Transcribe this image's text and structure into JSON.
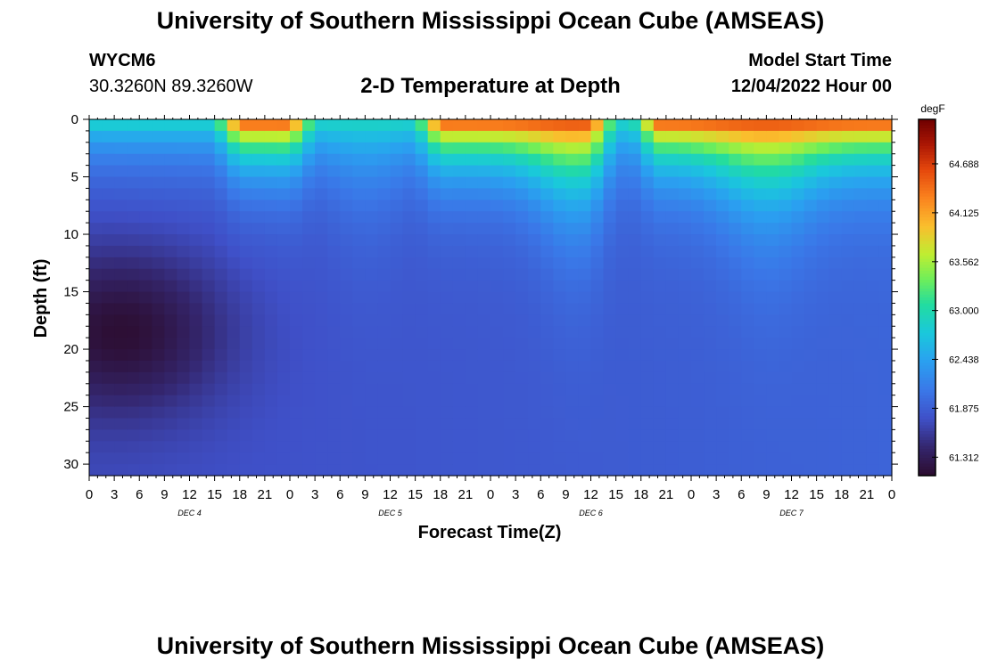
{
  "header": {
    "title": "University of Southern Mississippi Ocean Cube (AMSEAS)",
    "station_id": "WYCM6",
    "station_coords": "30.3260N  89.3260W",
    "plot_title": "2-D Temperature at Depth",
    "model_start_label": "Model Start Time",
    "model_start_value": "12/04/2022 Hour 00"
  },
  "footer": {
    "title": "University of Southern Mississippi Ocean Cube (AMSEAS)"
  },
  "chart_data": {
    "type": "heatmap",
    "title": "2-D Temperature at Depth",
    "xlabel": "Forecast Time(Z)",
    "ylabel": "Depth (ft)",
    "x_hours_range": [
      0,
      96
    ],
    "x_tick_labels": [
      "0",
      "3",
      "6",
      "9",
      "12",
      "15",
      "18",
      "21",
      "0",
      "3",
      "6",
      "9",
      "12",
      "15",
      "18",
      "21",
      "0",
      "3",
      "6",
      "9",
      "12",
      "15",
      "18",
      "21",
      "0",
      "3",
      "6",
      "9",
      "12",
      "15",
      "18",
      "21",
      "0"
    ],
    "day_labels": [
      "DEC 4",
      "DEC 5",
      "DEC 6",
      "DEC 7"
    ],
    "ylim": [
      0,
      31
    ],
    "y_ticks": [
      0,
      5,
      10,
      15,
      20,
      25,
      30
    ],
    "colorbar": {
      "units": "degF",
      "vmin": 61.1,
      "vmax": 65.2,
      "ticks": [
        "64.688",
        "64.125",
        "63.562",
        "63.000",
        "62.438",
        "61.875",
        "61.312"
      ],
      "tick_values": [
        64.688,
        64.125,
        63.562,
        63.0,
        62.438,
        61.875,
        61.312
      ]
    },
    "surface_warm_periods_hours": [
      [
        18,
        24
      ],
      [
        42,
        60
      ],
      [
        68,
        96
      ]
    ],
    "cold_core": {
      "hour": 4,
      "depth_ft": 18.5,
      "temp_degF": 61.15
    }
  },
  "colors": {
    "cold": "#2c0c2e",
    "warm": "#7e0000"
  }
}
